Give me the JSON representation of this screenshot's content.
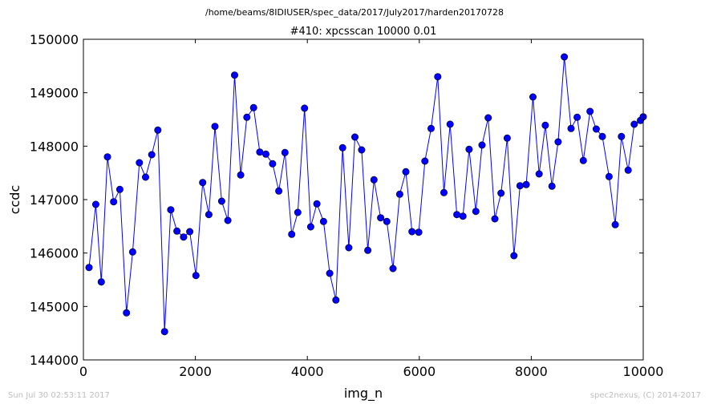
{
  "suptitle": "/home/beams/8IDIUSER/spec_data/2017/July2017/harden20170728",
  "footer": {
    "timestamp": "Sun Jul 30 02:53:11 2017",
    "credit": "spec2nexus, (C) 2014-2017"
  },
  "chart_data": {
    "type": "line",
    "title": "#410: xpcsscan 10000 0.01",
    "xlabel": "img_n",
    "ylabel": "ccdc",
    "xlim": [
      0,
      10000
    ],
    "ylim": [
      144000,
      150000
    ],
    "xticks": [
      0,
      2000,
      4000,
      6000,
      8000,
      10000
    ],
    "yticks": [
      144000,
      145000,
      146000,
      147000,
      148000,
      149000,
      150000
    ],
    "grid": false,
    "legend": "none",
    "series": [
      {
        "color": "#0000ff",
        "marker": "circle",
        "x": [
          100,
          220,
          320,
          430,
          540,
          650,
          770,
          880,
          1000,
          1110,
          1220,
          1330,
          1450,
          1560,
          1670,
          1790,
          1900,
          2010,
          2130,
          2240,
          2350,
          2470,
          2580,
          2700,
          2810,
          2920,
          3040,
          3150,
          3260,
          3380,
          3490,
          3600,
          3720,
          3830,
          3950,
          4060,
          4170,
          4290,
          4400,
          4510,
          4630,
          4740,
          4850,
          4970,
          5080,
          5190,
          5310,
          5420,
          5530,
          5650,
          5760,
          5870,
          5990,
          6100,
          6210,
          6330,
          6440,
          6550,
          6670,
          6780,
          6890,
          7010,
          7120,
          7230,
          7350,
          7460,
          7570,
          7690,
          7800,
          7910,
          8030,
          8140,
          8250,
          8370,
          8480,
          8590,
          8710,
          8820,
          8930,
          9050,
          9160,
          9270,
          9390,
          9500,
          9610,
          9730,
          9840,
          9950,
          10000
        ],
        "y": [
          145730,
          146910,
          145460,
          147800,
          146960,
          147190,
          144880,
          146020,
          147690,
          147420,
          147840,
          148300,
          144530,
          146810,
          146410,
          146300,
          146400,
          145580,
          147320,
          146720,
          148370,
          146970,
          146610,
          149330,
          147460,
          148540,
          148720,
          147890,
          147850,
          147670,
          147160,
          147880,
          146350,
          146760,
          148710,
          146490,
          146920,
          146590,
          145620,
          145120,
          147970,
          146100,
          148170,
          147930,
          146050,
          147370,
          146660,
          146590,
          145710,
          147100,
          147520,
          146400,
          146390,
          147720,
          148330,
          149300,
          147130,
          148410,
          146720,
          146690,
          147940,
          146780,
          148020,
          148530,
          146640,
          147120,
          148150,
          145950,
          147260,
          147280,
          148920,
          147480,
          148390,
          147250,
          148080,
          149670,
          148330,
          148540,
          147730,
          148650,
          148320,
          148180,
          147430,
          146530,
          148180,
          147550,
          148410,
          148480,
          148550
        ]
      }
    ]
  }
}
